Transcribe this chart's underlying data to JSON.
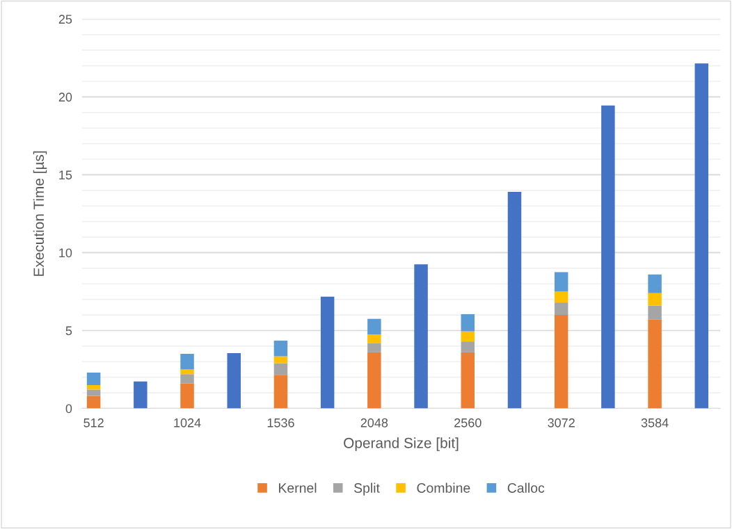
{
  "chart_data": {
    "type": "bar",
    "xlabel": "Operand Size [bit]",
    "ylabel": "Execution Time [µs]",
    "categories": [
      "512",
      null,
      "1024",
      null,
      "1536",
      null,
      "2048",
      null,
      "2560",
      null,
      "3072",
      null,
      "3584",
      null
    ],
    "stacked": true,
    "series": [
      {
        "color": "#4472c4",
        "values": [
          null,
          1.73,
          null,
          3.55,
          null,
          7.18,
          null,
          9.25,
          null,
          13.9,
          null,
          19.45,
          null,
          22.15
        ]
      },
      {
        "name": "Kernel",
        "color": "#ed7d31",
        "values": [
          0.8,
          null,
          1.6,
          null,
          2.15,
          null,
          3.6,
          null,
          3.6,
          null,
          6.0,
          null,
          5.7,
          null
        ]
      },
      {
        "name": "Split",
        "color": "#a5a5a5",
        "values": [
          0.4,
          null,
          0.6,
          null,
          0.75,
          null,
          0.6,
          null,
          0.7,
          null,
          0.8,
          null,
          0.9,
          null
        ]
      },
      {
        "name": "Combine",
        "color": "#ffc000",
        "values": [
          0.3,
          null,
          0.3,
          null,
          0.45,
          null,
          0.55,
          null,
          0.65,
          null,
          0.7,
          null,
          0.8,
          null
        ]
      },
      {
        "name": "Calloc",
        "color": "#5b9bd5",
        "values": [
          0.8,
          null,
          1.0,
          null,
          1.0,
          null,
          1.0,
          null,
          1.1,
          null,
          1.25,
          null,
          1.2,
          null
        ]
      }
    ],
    "ylim": [
      0,
      25
    ],
    "yticks": [
      0,
      5,
      10,
      15,
      20,
      25
    ],
    "grid": "y",
    "legend": "bottom"
  }
}
